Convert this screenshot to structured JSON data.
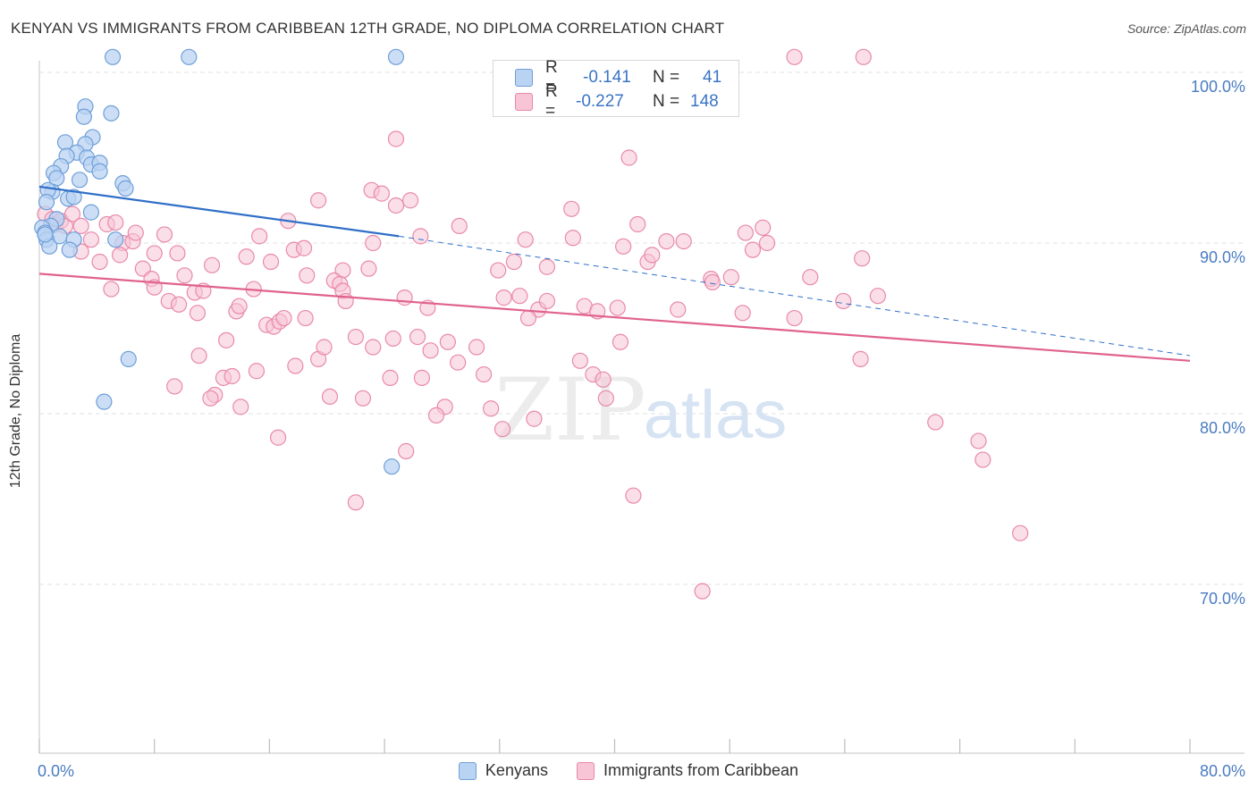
{
  "title": "KENYAN VS IMMIGRANTS FROM CARIBBEAN 12TH GRADE, NO DIPLOMA CORRELATION CHART",
  "source": "Source: ZipAtlas.com",
  "watermark": {
    "zip": "ZIP",
    "atlas": "atlas"
  },
  "colors": {
    "kenyan_fill": "#b9d3f3",
    "kenyan_stroke": "#6f9fd8",
    "kenyan_line": "#2f6fc8",
    "carib_fill": "#f7c5d6",
    "carib_stroke": "#e889aa",
    "carib_line": "#e0628e",
    "axis_text": "#4a7cc2",
    "grid": "#e2e2e2"
  },
  "legend": {
    "r_label": "R =",
    "n_label": "N =",
    "kenyan": {
      "r": "-0.141",
      "n": "41"
    },
    "carib": {
      "r": "-0.227",
      "n": "148"
    }
  },
  "chart_data": {
    "type": "scatter",
    "title": "KENYAN VS IMMIGRANTS FROM CARIBBEAN 12TH GRADE, NO DIPLOMA CORRELATION CHART",
    "xlabel": "",
    "ylabel": "12th Grade, No Diploma",
    "xlim": [
      0,
      80
    ],
    "ylim": [
      60,
      102
    ],
    "x_tick_labels": {
      "left": "0.0%",
      "right": "80.0%"
    },
    "y_ticks": [
      {
        "value": 100,
        "label": "100.0%"
      },
      {
        "value": 90,
        "label": "90.0%"
      },
      {
        "value": 80,
        "label": "80.0%"
      },
      {
        "value": 70,
        "label": "70.0%"
      }
    ],
    "grid": true,
    "legend_position": "top-center",
    "series": [
      {
        "name": "Kenyans",
        "r": -0.141,
        "n": 41,
        "trend": {
          "x0": 0,
          "y0": 93.3,
          "x1": 25,
          "y1": 90.4,
          "dashed_to_x": 80,
          "dashed_to_y": 83.4
        },
        "points": [
          [
            5.1,
            100.9
          ],
          [
            10.4,
            100.9
          ],
          [
            24.8,
            100.9
          ],
          [
            3.2,
            98.0
          ],
          [
            3.1,
            97.4
          ],
          [
            5.0,
            97.6
          ],
          [
            3.7,
            96.2
          ],
          [
            1.8,
            95.9
          ],
          [
            3.2,
            95.8
          ],
          [
            2.6,
            95.3
          ],
          [
            1.9,
            95.1
          ],
          [
            3.3,
            95.0
          ],
          [
            3.6,
            94.6
          ],
          [
            4.2,
            94.7
          ],
          [
            1.5,
            94.5
          ],
          [
            4.2,
            94.2
          ],
          [
            1.0,
            94.1
          ],
          [
            1.2,
            93.8
          ],
          [
            2.8,
            93.7
          ],
          [
            5.8,
            93.5
          ],
          [
            0.9,
            93.0
          ],
          [
            6.0,
            93.2
          ],
          [
            0.6,
            93.1
          ],
          [
            2.0,
            92.6
          ],
          [
            2.4,
            92.7
          ],
          [
            0.5,
            92.4
          ],
          [
            3.6,
            91.8
          ],
          [
            1.2,
            91.4
          ],
          [
            0.8,
            91.0
          ],
          [
            0.2,
            90.9
          ],
          [
            0.4,
            90.6
          ],
          [
            1.4,
            90.4
          ],
          [
            0.5,
            90.2
          ],
          [
            2.4,
            90.2
          ],
          [
            5.3,
            90.2
          ],
          [
            0.7,
            89.8
          ],
          [
            2.1,
            89.6
          ],
          [
            6.2,
            83.2
          ],
          [
            4.5,
            80.7
          ],
          [
            24.5,
            76.9
          ],
          [
            0.4,
            90.5
          ]
        ]
      },
      {
        "name": "Immigrants from Caribbean",
        "r": -0.227,
        "n": 148,
        "trend": {
          "x0": 0,
          "y0": 88.2,
          "x1": 80,
          "y1": 83.1
        },
        "points": [
          [
            52.5,
            100.9
          ],
          [
            57.3,
            100.9
          ],
          [
            24.8,
            96.1
          ],
          [
            41.0,
            95.0
          ],
          [
            23.1,
            93.1
          ],
          [
            23.8,
            92.9
          ],
          [
            19.4,
            92.5
          ],
          [
            24.8,
            92.2
          ],
          [
            25.8,
            92.5
          ],
          [
            37.0,
            92.0
          ],
          [
            0.4,
            91.7
          ],
          [
            0.9,
            91.4
          ],
          [
            1.1,
            91.1
          ],
          [
            1.5,
            91.3
          ],
          [
            1.8,
            91.0
          ],
          [
            2.3,
            91.7
          ],
          [
            2.9,
            91.0
          ],
          [
            4.7,
            91.1
          ],
          [
            5.3,
            91.2
          ],
          [
            17.3,
            91.3
          ],
          [
            29.2,
            91.0
          ],
          [
            41.6,
            91.1
          ],
          [
            50.3,
            90.9
          ],
          [
            3.6,
            90.2
          ],
          [
            5.8,
            90.0
          ],
          [
            6.5,
            90.1
          ],
          [
            6.7,
            90.6
          ],
          [
            8.7,
            90.5
          ],
          [
            15.3,
            90.4
          ],
          [
            26.5,
            90.4
          ],
          [
            33.8,
            90.2
          ],
          [
            37.1,
            90.3
          ],
          [
            43.6,
            90.1
          ],
          [
            49.1,
            90.6
          ],
          [
            23.2,
            90.0
          ],
          [
            2.9,
            89.5
          ],
          [
            5.6,
            89.3
          ],
          [
            8.0,
            89.4
          ],
          [
            9.6,
            89.4
          ],
          [
            14.4,
            89.2
          ],
          [
            16.1,
            88.9
          ],
          [
            17.7,
            89.6
          ],
          [
            18.4,
            89.7
          ],
          [
            33.0,
            88.9
          ],
          [
            40.6,
            89.8
          ],
          [
            42.3,
            88.9
          ],
          [
            42.6,
            89.3
          ],
          [
            49.6,
            89.6
          ],
          [
            57.2,
            89.1
          ],
          [
            4.2,
            88.9
          ],
          [
            7.2,
            88.5
          ],
          [
            10.1,
            88.1
          ],
          [
            12.0,
            88.7
          ],
          [
            18.6,
            88.1
          ],
          [
            21.1,
            88.4
          ],
          [
            22.9,
            88.5
          ],
          [
            31.9,
            88.4
          ],
          [
            35.3,
            88.6
          ],
          [
            46.7,
            87.9
          ],
          [
            48.1,
            88.0
          ],
          [
            53.6,
            88.0
          ],
          [
            5.0,
            87.3
          ],
          [
            7.8,
            87.9
          ],
          [
            8.0,
            87.4
          ],
          [
            10.8,
            87.1
          ],
          [
            11.4,
            87.2
          ],
          [
            14.9,
            87.3
          ],
          [
            20.5,
            87.8
          ],
          [
            20.9,
            87.6
          ],
          [
            21.1,
            87.2
          ],
          [
            46.8,
            87.7
          ],
          [
            9.0,
            86.6
          ],
          [
            9.7,
            86.4
          ],
          [
            11.0,
            85.9
          ],
          [
            13.7,
            86.0
          ],
          [
            13.9,
            86.3
          ],
          [
            21.3,
            86.6
          ],
          [
            25.4,
            86.8
          ],
          [
            27.0,
            86.2
          ],
          [
            32.3,
            86.8
          ],
          [
            33.4,
            86.9
          ],
          [
            34.7,
            86.1
          ],
          [
            35.3,
            86.6
          ],
          [
            37.9,
            86.3
          ],
          [
            38.8,
            86.0
          ],
          [
            44.4,
            86.1
          ],
          [
            48.9,
            85.9
          ],
          [
            55.9,
            86.6
          ],
          [
            58.3,
            86.9
          ],
          [
            15.8,
            85.2
          ],
          [
            16.3,
            85.1
          ],
          [
            16.7,
            85.4
          ],
          [
            17.0,
            85.6
          ],
          [
            18.5,
            85.6
          ],
          [
            24.6,
            84.4
          ],
          [
            26.3,
            84.5
          ],
          [
            27.2,
            83.7
          ],
          [
            28.4,
            84.2
          ],
          [
            30.4,
            83.9
          ],
          [
            34.0,
            85.6
          ],
          [
            40.4,
            84.2
          ],
          [
            52.5,
            85.6
          ],
          [
            11.1,
            83.4
          ],
          [
            13.0,
            84.3
          ],
          [
            19.4,
            83.2
          ],
          [
            19.8,
            83.9
          ],
          [
            22.0,
            84.5
          ],
          [
            23.2,
            83.9
          ],
          [
            29.1,
            83.0
          ],
          [
            37.6,
            83.1
          ],
          [
            38.5,
            82.3
          ],
          [
            57.1,
            83.2
          ],
          [
            9.4,
            81.6
          ],
          [
            12.2,
            81.1
          ],
          [
            12.8,
            82.1
          ],
          [
            13.4,
            82.2
          ],
          [
            15.1,
            82.5
          ],
          [
            17.8,
            82.8
          ],
          [
            24.4,
            82.1
          ],
          [
            26.6,
            82.1
          ],
          [
            30.9,
            82.3
          ],
          [
            39.2,
            82.0
          ],
          [
            11.9,
            80.9
          ],
          [
            14.0,
            80.4
          ],
          [
            20.2,
            81.0
          ],
          [
            22.5,
            80.9
          ],
          [
            28.2,
            80.4
          ],
          [
            31.4,
            80.3
          ],
          [
            39.4,
            80.9
          ],
          [
            27.6,
            79.9
          ],
          [
            32.2,
            79.1
          ],
          [
            34.4,
            79.7
          ],
          [
            62.3,
            79.5
          ],
          [
            16.6,
            78.6
          ],
          [
            25.5,
            77.8
          ],
          [
            65.3,
            78.4
          ],
          [
            65.6,
            77.3
          ],
          [
            22.0,
            74.8
          ],
          [
            41.3,
            75.2
          ],
          [
            68.2,
            73.0
          ],
          [
            46.1,
            69.6
          ],
          [
            50.6,
            90.0
          ],
          [
            40.2,
            86.2
          ],
          [
            44.8,
            90.1
          ]
        ]
      }
    ]
  },
  "bottom_legend": [
    {
      "label": "Kenyans"
    },
    {
      "label": "Immigrants from Caribbean"
    }
  ]
}
